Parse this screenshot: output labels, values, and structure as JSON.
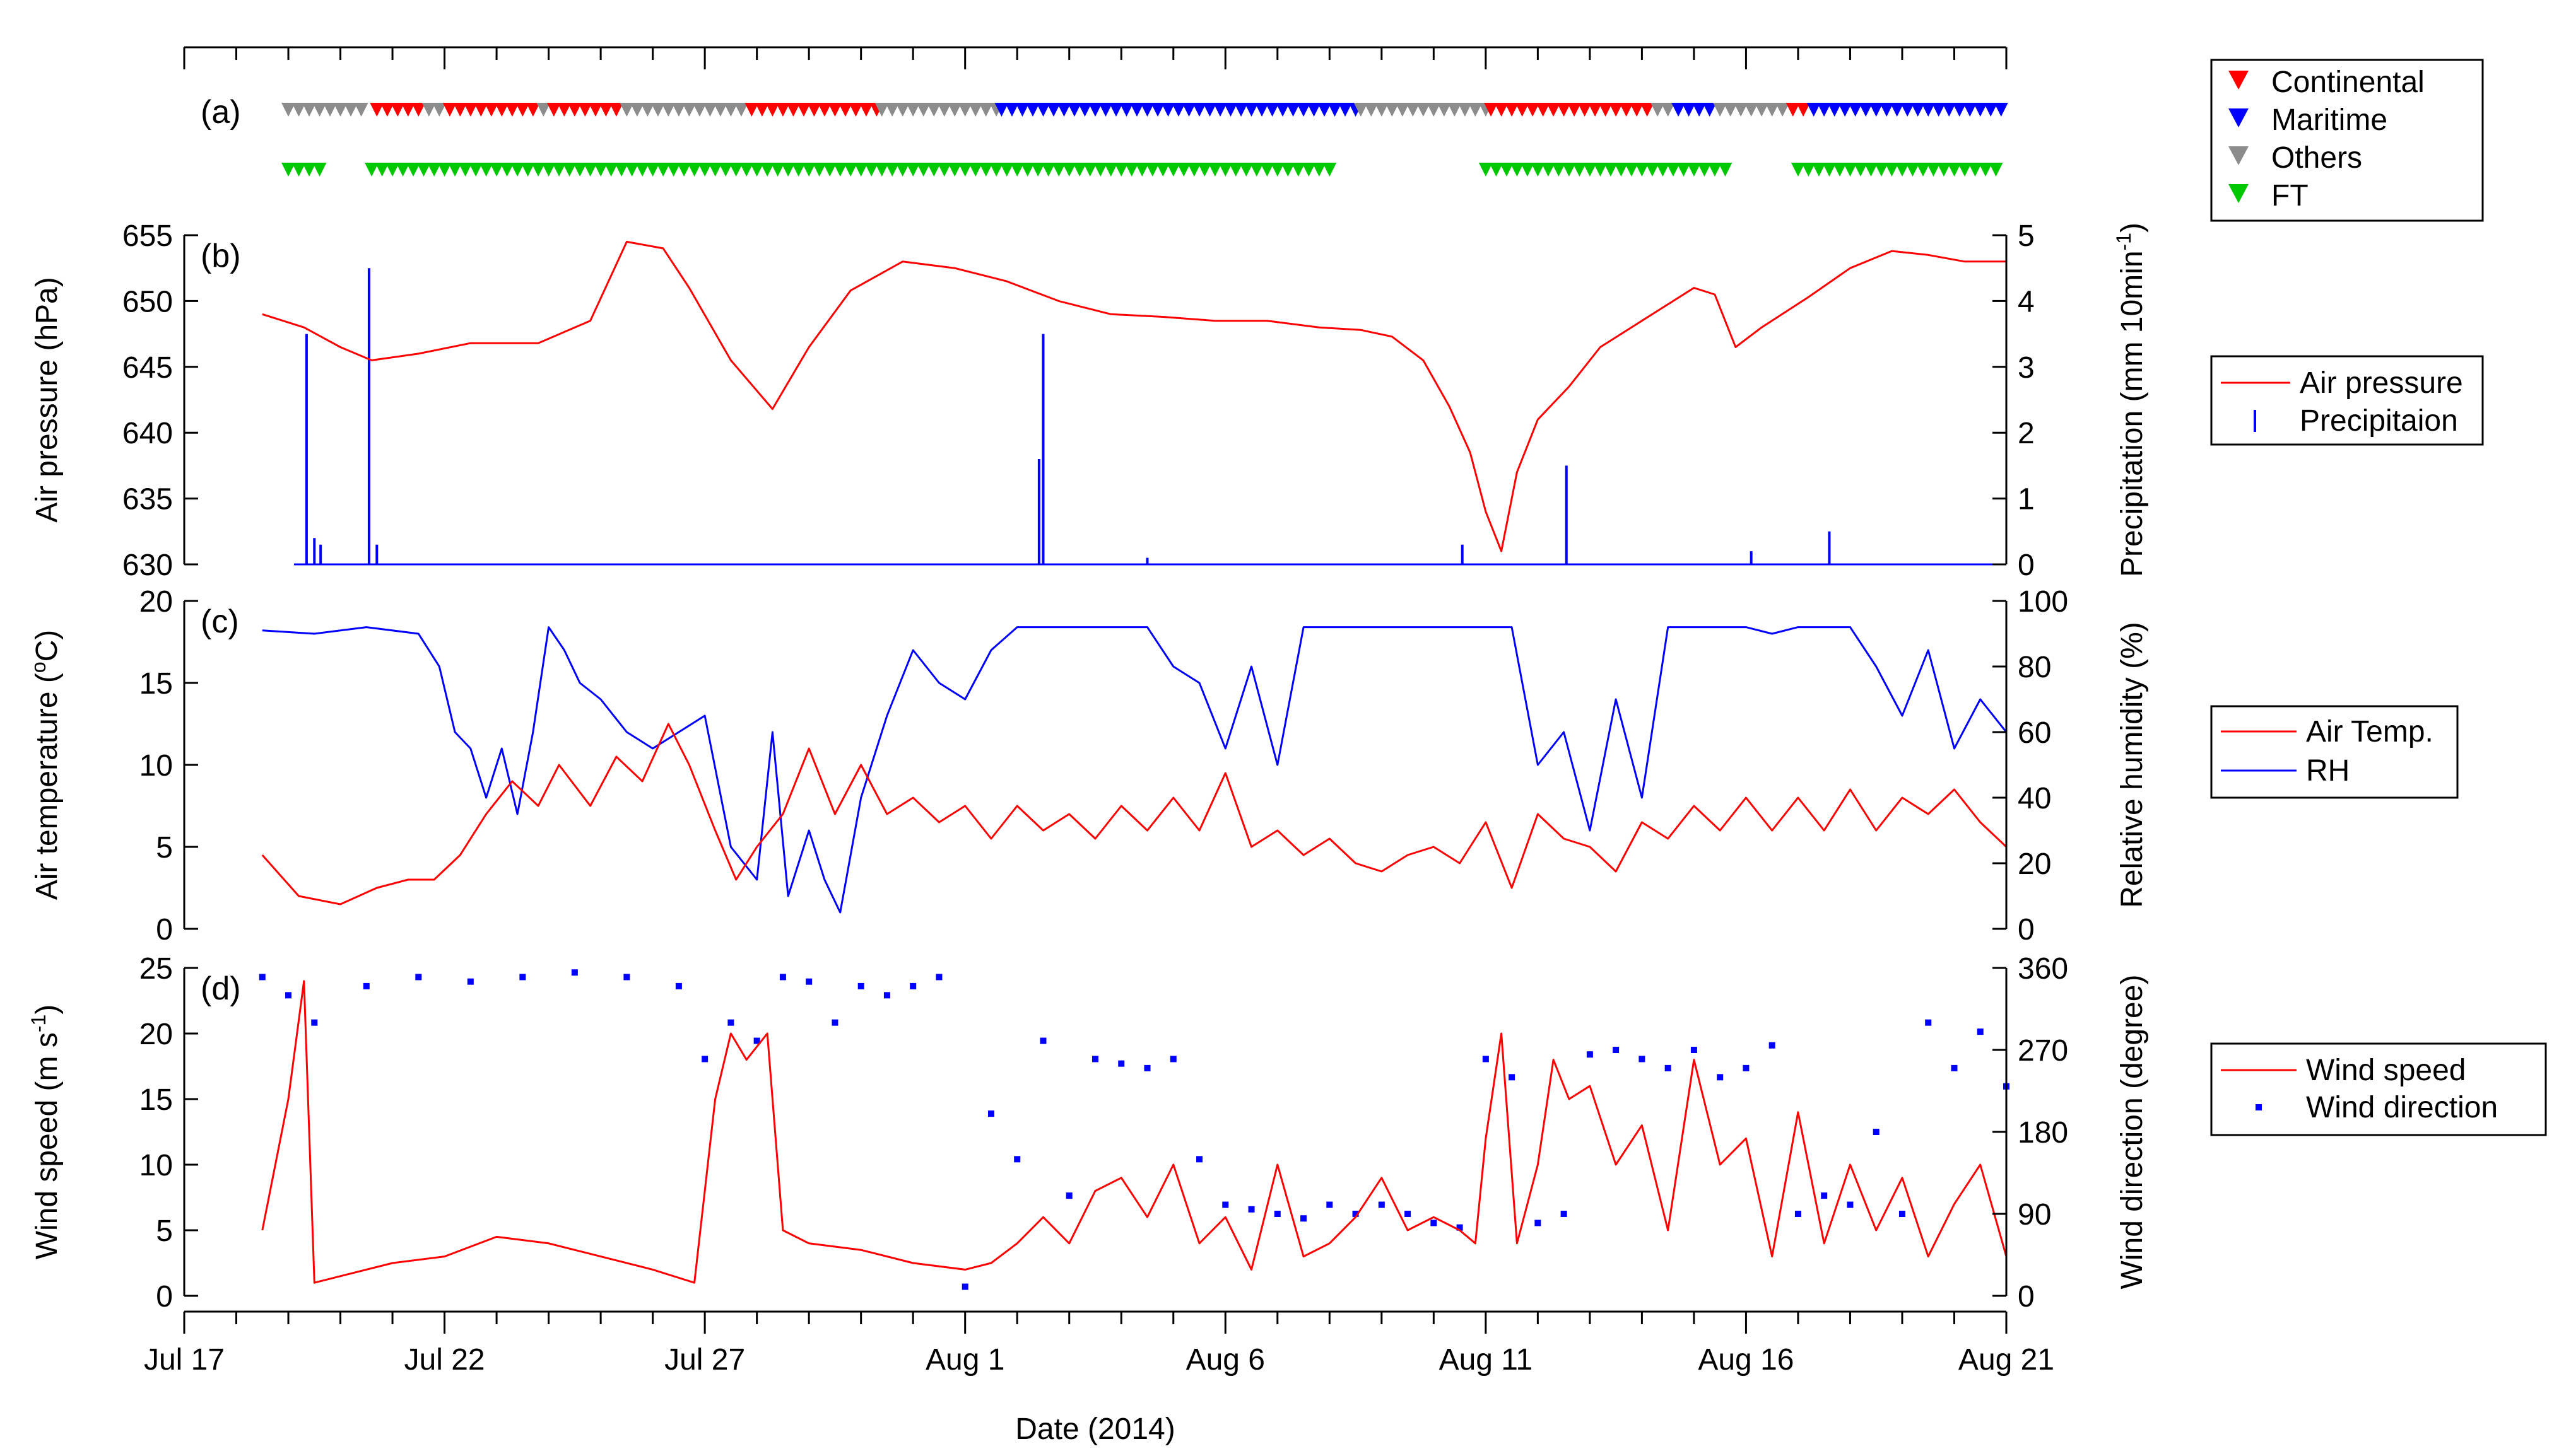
{
  "chart_data": {
    "type": "line",
    "title": "",
    "xlabel": "Date (2014)",
    "x_range_days_since_jul17": [
      0,
      35
    ],
    "x_ticks": [
      {
        "day": 0,
        "label": "Jul 17"
      },
      {
        "day": 5,
        "label": "Jul 22"
      },
      {
        "day": 10,
        "label": "Jul 27"
      },
      {
        "day": 15,
        "label": "Aug 1"
      },
      {
        "day": 20,
        "label": "Aug 6"
      },
      {
        "day": 25,
        "label": "Aug 11"
      },
      {
        "day": 30,
        "label": "Aug 16"
      },
      {
        "day": 35,
        "label": "Aug 21"
      }
    ],
    "panel_a": {
      "label": "(a)",
      "colors": {
        "Continental": "#ff0000",
        "Maritime": "#0000ff",
        "Others": "#8c8c8c",
        "FT": "#00c800"
      },
      "air_mass_segments": [
        {
          "type": "Others",
          "start": 1.9,
          "end": 3.6
        },
        {
          "type": "Continental",
          "start": 3.6,
          "end": 4.6
        },
        {
          "type": "Others",
          "start": 4.6,
          "end": 5.0
        },
        {
          "type": "Continental",
          "start": 5.0,
          "end": 6.8
        },
        {
          "type": "Others",
          "start": 6.8,
          "end": 7.0
        },
        {
          "type": "Continental",
          "start": 7.0,
          "end": 8.4
        },
        {
          "type": "Others",
          "start": 8.4,
          "end": 10.8
        },
        {
          "type": "Continental",
          "start": 10.8,
          "end": 13.3
        },
        {
          "type": "Others",
          "start": 13.3,
          "end": 15.6
        },
        {
          "type": "Maritime",
          "start": 15.6,
          "end": 22.5
        },
        {
          "type": "Others",
          "start": 22.5,
          "end": 25.0
        },
        {
          "type": "Continental",
          "start": 25.0,
          "end": 28.2
        },
        {
          "type": "Others",
          "start": 28.2,
          "end": 28.6
        },
        {
          "type": "Maritime",
          "start": 28.6,
          "end": 29.4
        },
        {
          "type": "Others",
          "start": 29.4,
          "end": 30.8
        },
        {
          "type": "Continental",
          "start": 30.8,
          "end": 31.2
        },
        {
          "type": "Maritime",
          "start": 31.2,
          "end": 35.0
        }
      ],
      "ft_segments": [
        {
          "start": 1.9,
          "end": 2.8
        },
        {
          "start": 3.5,
          "end": 22.1
        },
        {
          "start": 24.9,
          "end": 29.6
        },
        {
          "start": 30.9,
          "end": 35.0
        }
      ]
    },
    "panel_b": {
      "label": "(b)",
      "ylabel": "Air pressure (hPa)",
      "y2label_main": "Precipitation (mm 10min",
      "y2label_sup": "-1",
      "y2label_end": ")",
      "ylim": [
        630,
        655
      ],
      "yticks": [
        630,
        635,
        640,
        645,
        650,
        655
      ],
      "y2lim": [
        0,
        5
      ],
      "y2ticks": [
        0,
        1,
        2,
        3,
        4,
        5
      ],
      "series": [
        {
          "name": "Air pressure",
          "color": "#ff0000",
          "x": [
            1.5,
            2.3,
            3.0,
            3.6,
            4.5,
            5.5,
            6.8,
            7.8,
            8.5,
            9.2,
            9.7,
            10.5,
            11.3,
            12.0,
            12.8,
            13.8,
            14.8,
            15.8,
            16.8,
            17.8,
            18.8,
            19.8,
            20.8,
            21.8,
            22.6,
            23.2,
            23.8,
            24.3,
            24.7,
            25.0,
            25.3,
            25.6,
            26.0,
            26.6,
            27.2,
            28.0,
            28.6,
            29.0,
            29.4,
            29.8,
            30.3,
            31.2,
            32.0,
            32.8,
            33.5,
            34.2,
            35.0
          ],
          "values": [
            649,
            648,
            646.5,
            645.5,
            646,
            646.8,
            646.8,
            648.5,
            654.5,
            654,
            651,
            645.5,
            641.8,
            646.5,
            650.8,
            653,
            652.5,
            651.5,
            650,
            649,
            648.8,
            648.5,
            648.5,
            648,
            647.8,
            647.3,
            645.5,
            642,
            638.5,
            634,
            631,
            637,
            641,
            643.5,
            646.5,
            648.5,
            650,
            651,
            650.5,
            646.5,
            648,
            650.3,
            652.5,
            653.8,
            653.5,
            653,
            653
          ]
        },
        {
          "name": "Precipitaion",
          "color": "#0000ff",
          "x": [
            2.35,
            2.5,
            2.62,
            3.55,
            3.7,
            16.42,
            16.5,
            18.5,
            24.55,
            26.55,
            30.1,
            31.6
          ],
          "values": [
            3.5,
            0.4,
            0.3,
            4.5,
            0.3,
            1.6,
            3.5,
            0.1,
            0.3,
            1.5,
            0.2,
            0.5
          ]
        }
      ],
      "legend": [
        "Air pressure",
        "Precipitaion"
      ]
    },
    "panel_c": {
      "label": "(c)",
      "ylabel_main": "Air temperature (",
      "ylabel_sup": "o",
      "ylabel_end": "C)",
      "y2label": "Relative humidity (%)",
      "ylim": [
        0,
        20
      ],
      "yticks": [
        0,
        5,
        10,
        15,
        20
      ],
      "y2lim": [
        0,
        100
      ],
      "y2ticks": [
        0,
        20,
        40,
        60,
        80,
        100
      ],
      "series": [
        {
          "name": "Air Temp.",
          "color": "#ff0000",
          "x": [
            1.5,
            2.2,
            3.0,
            3.7,
            4.3,
            4.8,
            5.3,
            5.8,
            6.3,
            6.8,
            7.2,
            7.8,
            8.3,
            8.8,
            9.3,
            9.7,
            10.2,
            10.6,
            11.0,
            11.5,
            12.0,
            12.5,
            13.0,
            13.5,
            14.0,
            14.5,
            15.0,
            15.5,
            16.0,
            16.5,
            17.0,
            17.5,
            18.0,
            18.5,
            19.0,
            19.5,
            20.0,
            20.5,
            21.0,
            21.5,
            22.0,
            22.5,
            23.0,
            23.5,
            24.0,
            24.5,
            25.0,
            25.5,
            26.0,
            26.5,
            27.0,
            27.5,
            28.0,
            28.5,
            29.0,
            29.5,
            30.0,
            30.5,
            31.0,
            31.5,
            32.0,
            32.5,
            33.0,
            33.5,
            34.0,
            34.5,
            35.0
          ],
          "values": [
            4.5,
            2,
            1.5,
            2.5,
            3,
            3,
            4.5,
            7,
            9,
            7.5,
            10,
            7.5,
            10.5,
            9,
            12.5,
            10,
            6,
            3,
            5,
            7,
            11,
            7,
            10,
            7,
            8,
            6.5,
            7.5,
            5.5,
            7.5,
            6,
            7,
            5.5,
            7.5,
            6,
            8,
            6,
            9.5,
            5,
            6,
            4.5,
            5.5,
            4,
            3.5,
            4.5,
            5,
            4,
            6.5,
            2.5,
            7,
            5.5,
            5,
            3.5,
            6.5,
            5.5,
            7.5,
            6,
            8,
            6,
            8,
            6,
            8.5,
            6,
            8,
            7,
            8.5,
            6.5,
            5
          ]
        },
        {
          "name": "RH",
          "color": "#0000ff",
          "axis": "right",
          "x": [
            1.5,
            2.5,
            3.5,
            4.5,
            4.9,
            5.2,
            5.5,
            5.8,
            6.1,
            6.4,
            6.7,
            7.0,
            7.3,
            7.6,
            8.0,
            8.5,
            9.0,
            9.5,
            10.0,
            10.5,
            11.0,
            11.3,
            11.6,
            12.0,
            12.3,
            12.6,
            13.0,
            13.5,
            14.0,
            14.5,
            15.0,
            15.5,
            16.0,
            16.5,
            17.0,
            17.5,
            18.0,
            18.5,
            19.0,
            19.5,
            20.0,
            20.5,
            21.0,
            21.5,
            22.0,
            22.5,
            23.0,
            23.5,
            24.0,
            24.5,
            25.0,
            25.5,
            26.0,
            26.5,
            27.0,
            27.5,
            28.0,
            28.5,
            29.0,
            29.5,
            30.0,
            30.5,
            31.0,
            31.5,
            32.0,
            32.5,
            33.0,
            33.5,
            34.0,
            34.5,
            35.0
          ],
          "values": [
            91,
            90,
            92,
            90,
            80,
            60,
            55,
            40,
            55,
            35,
            60,
            92,
            85,
            75,
            70,
            60,
            55,
            60,
            65,
            25,
            15,
            60,
            10,
            30,
            15,
            5,
            40,
            65,
            85,
            75,
            70,
            85,
            92,
            92,
            92,
            92,
            92,
            92,
            80,
            75,
            55,
            80,
            50,
            92,
            92,
            92,
            92,
            92,
            92,
            92,
            92,
            92,
            50,
            60,
            30,
            70,
            40,
            92,
            92,
            92,
            92,
            90,
            92,
            92,
            92,
            80,
            65,
            85,
            55,
            70,
            60
          ]
        }
      ],
      "legend": [
        "Air Temp.",
        "RH"
      ]
    },
    "panel_d": {
      "label": "(d)",
      "ylabel_main": "Wind speed (m s",
      "ylabel_sup": "-1",
      "ylabel_end": ")",
      "y2label": "Wind direction (degree)",
      "ylim": [
        0,
        25
      ],
      "yticks": [
        0,
        5,
        10,
        15,
        20,
        25
      ],
      "y2lim": [
        0,
        360
      ],
      "y2ticks": [
        0,
        90,
        180,
        270,
        360
      ],
      "series": [
        {
          "name": "Wind speed",
          "color": "#ff0000",
          "x": [
            1.5,
            2.0,
            2.3,
            2.5,
            3.0,
            4.0,
            5.0,
            6.0,
            7.0,
            8.0,
            9.0,
            9.8,
            10.2,
            10.5,
            10.8,
            11.2,
            11.5,
            12.0,
            13.0,
            14.0,
            15.0,
            15.5,
            16.0,
            16.5,
            17.0,
            17.5,
            18.0,
            18.5,
            19.0,
            19.5,
            20.0,
            20.5,
            21.0,
            21.5,
            22.0,
            22.5,
            23.0,
            23.5,
            24.0,
            24.5,
            24.8,
            25.0,
            25.3,
            25.6,
            26.0,
            26.3,
            26.6,
            27.0,
            27.5,
            28.0,
            28.5,
            29.0,
            29.5,
            30.0,
            30.5,
            31.0,
            31.5,
            32.0,
            32.5,
            33.0,
            33.5,
            34.0,
            34.5,
            35.0
          ],
          "values": [
            5,
            15,
            24,
            1,
            1.5,
            2.5,
            3,
            4.5,
            4,
            3,
            2,
            1,
            15,
            20,
            18,
            20,
            5,
            4,
            3.5,
            2.5,
            2,
            2.5,
            4,
            6,
            4,
            8,
            9,
            6,
            10,
            4,
            6,
            2,
            10,
            3,
            4,
            6,
            9,
            5,
            6,
            5,
            4,
            12,
            20,
            4,
            10,
            18,
            15,
            16,
            10,
            13,
            5,
            18,
            10,
            12,
            3,
            14,
            4,
            10,
            5,
            9,
            3,
            7,
            10,
            3
          ]
        },
        {
          "name": "Wind direction",
          "color": "#0000ff",
          "axis": "right",
          "x": [
            1.5,
            2.0,
            2.5,
            3.5,
            4.5,
            5.5,
            6.5,
            7.5,
            8.5,
            9.5,
            10.0,
            10.5,
            11.0,
            11.5,
            12.0,
            12.5,
            13.0,
            13.5,
            14.0,
            14.5,
            15.0,
            15.5,
            16.0,
            16.5,
            17.0,
            17.5,
            18.0,
            18.5,
            19.0,
            19.5,
            20.0,
            20.5,
            21.0,
            21.5,
            22.0,
            22.5,
            23.0,
            23.5,
            24.0,
            24.5,
            25.0,
            25.5,
            26.0,
            26.5,
            27.0,
            27.5,
            28.0,
            28.5,
            29.0,
            29.5,
            30.0,
            30.5,
            31.0,
            31.5,
            32.0,
            32.5,
            33.0,
            33.5,
            34.0,
            34.5,
            35.0
          ],
          "values": [
            350,
            330,
            300,
            340,
            350,
            345,
            350,
            355,
            350,
            340,
            260,
            300,
            280,
            350,
            345,
            300,
            340,
            330,
            340,
            350,
            10,
            200,
            150,
            280,
            110,
            260,
            255,
            250,
            260,
            150,
            100,
            95,
            90,
            85,
            100,
            90,
            100,
            90,
            80,
            75,
            260,
            240,
            80,
            90,
            265,
            270,
            260,
            250,
            270,
            240,
            250,
            275,
            90,
            110,
            100,
            180,
            90,
            300,
            250,
            290,
            230
          ]
        }
      ],
      "legend": [
        "Wind speed",
        "Wind direction"
      ]
    }
  }
}
